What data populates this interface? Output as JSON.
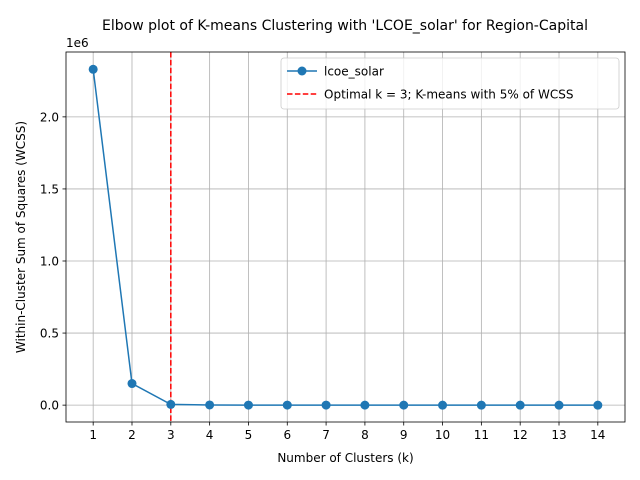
{
  "chart_data": {
    "type": "line",
    "title": "Elbow plot of K-means Clustering with 'LCOE_solar' for Region-Capital",
    "xlabel": "Number of Clusters (k)",
    "ylabel": "Within-Cluster Sum of Squares (WCSS)",
    "y_offset_label": "1e6",
    "x_ticks": [
      1,
      2,
      3,
      4,
      5,
      6,
      7,
      8,
      9,
      10,
      11,
      12,
      13,
      14
    ],
    "y_ticks": [
      0.0,
      0.5,
      1.0,
      1.5,
      2.0
    ],
    "y_tick_labels": [
      "0.0",
      "0.5",
      "1.0",
      "1.5",
      "2.0"
    ],
    "xlim": [
      0.3,
      14.7
    ],
    "ylim": [
      -0.117,
      2.45
    ],
    "grid": true,
    "legend_position": "top-right",
    "series": [
      {
        "name": "lcoe_solar",
        "color": "#1f77b4",
        "marker": "circle",
        "x": [
          1,
          2,
          3,
          4,
          5,
          6,
          7,
          8,
          9,
          10,
          11,
          12,
          13,
          14
        ],
        "values": [
          2.33,
          0.15,
          0.005,
          0.001,
          0.0005,
          0.0003,
          0.0002,
          0.0001,
          0.0001,
          0.0,
          0.0,
          0.0,
          0.0,
          0.0
        ]
      }
    ],
    "vline": {
      "x": 3,
      "color": "#ff0000",
      "style": "dashed",
      "label": "Optimal k = 3; K-means with 5% of WCSS"
    }
  }
}
